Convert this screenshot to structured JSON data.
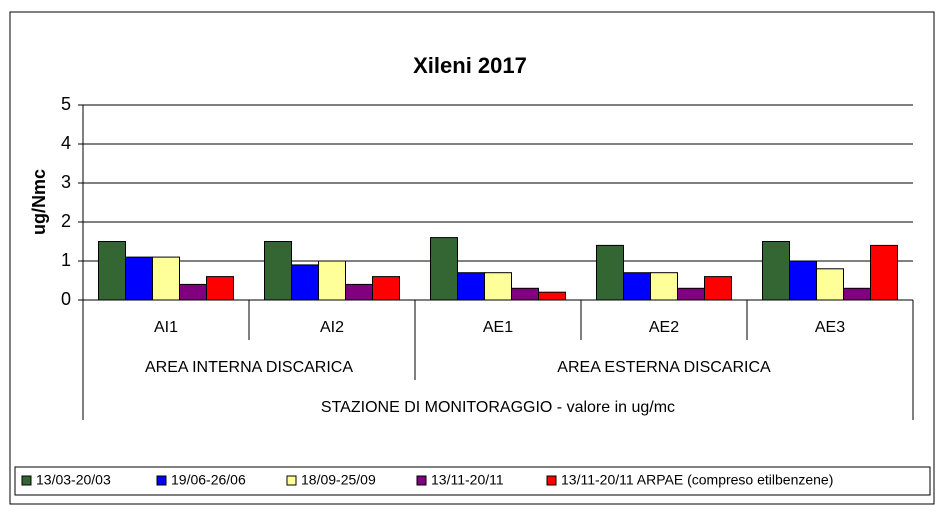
{
  "chart_data": {
    "type": "bar",
    "title": "Xileni 2017",
    "ylabel": "ug/Nmc",
    "xlabel": "STAZIONE DI MONITORAGGIO - valore in ug/mc",
    "categories": [
      "AI1",
      "AI2",
      "AE1",
      "AE2",
      "AE3"
    ],
    "x_group_labels": [
      "AREA INTERNA DISCARICA",
      "AREA ESTERNA DISCARICA"
    ],
    "series": [
      {
        "name": "13/03-20/03",
        "color": "#336633",
        "values": [
          1.5,
          1.5,
          1.6,
          1.4,
          1.5
        ]
      },
      {
        "name": "19/06-26/06",
        "color": "#0000ff",
        "values": [
          1.1,
          0.9,
          0.7,
          0.7,
          1.0
        ]
      },
      {
        "name": "18/09-25/09",
        "color": "#ffff99",
        "values": [
          1.1,
          1.0,
          0.7,
          0.7,
          0.8
        ]
      },
      {
        "name": "13/11-20/11",
        "color": "#800080",
        "values": [
          0.4,
          0.4,
          0.3,
          0.3,
          0.3
        ]
      },
      {
        "name": "13/11-20/11 ARPAE (compreso etilbenzene)",
        "color": "#ff0000",
        "values": [
          0.6,
          0.6,
          0.2,
          0.6,
          1.4
        ]
      }
    ],
    "ylim": [
      0,
      5
    ],
    "yticks": [
      0,
      1,
      2,
      3,
      4,
      5
    ],
    "grid": true,
    "legend": "bottom"
  }
}
